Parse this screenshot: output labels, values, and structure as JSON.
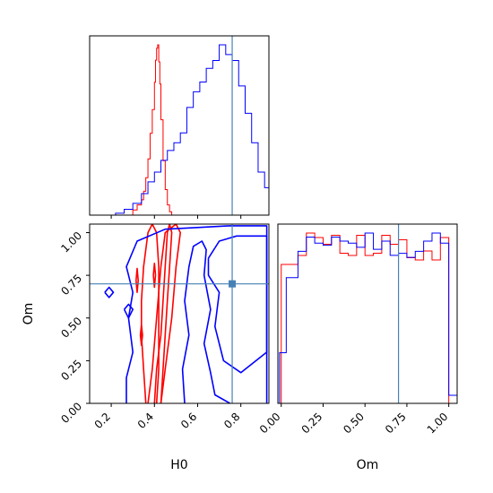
{
  "chart_data": [
    {
      "type": "histogram",
      "panel": "H0 marginal",
      "x_range": [
        0.1,
        0.93
      ],
      "truth_x": 0.76,
      "ticks_x": [
        "0.2",
        "0.4",
        "0.6",
        "0.8"
      ],
      "series": [
        {
          "color": "#ff0000",
          "edges": [
            0.3,
            0.32,
            0.34,
            0.35,
            0.36,
            0.37,
            0.38,
            0.39,
            0.4,
            0.405,
            0.41,
            0.415,
            0.42,
            0.425,
            0.43,
            0.44,
            0.45,
            0.46,
            0.47,
            0.48
          ],
          "heights": [
            0.03,
            0.06,
            0.09,
            0.14,
            0.22,
            0.33,
            0.48,
            0.62,
            0.78,
            0.91,
            0.98,
            1.0,
            0.9,
            0.77,
            0.56,
            0.32,
            0.15,
            0.06,
            0.02
          ]
        },
        {
          "color": "#0000ff",
          "edges": [
            0.22,
            0.26,
            0.3,
            0.34,
            0.37,
            0.4,
            0.43,
            0.46,
            0.49,
            0.52,
            0.55,
            0.58,
            0.61,
            0.64,
            0.67,
            0.7,
            0.73,
            0.76,
            0.79,
            0.82,
            0.85,
            0.88,
            0.91,
            0.93
          ],
          "heights": [
            0.01,
            0.03,
            0.06,
            0.11,
            0.17,
            0.22,
            0.28,
            0.33,
            0.37,
            0.42,
            0.55,
            0.63,
            0.68,
            0.75,
            0.79,
            0.87,
            0.82,
            0.79,
            0.66,
            0.52,
            0.37,
            0.22,
            0.14
          ]
        }
      ]
    },
    {
      "type": "contour",
      "panel": "H0 vs Om",
      "xlabel": "H0",
      "ylabel": "Om",
      "x_range": [
        0.1,
        0.93
      ],
      "y_range": [
        0.0,
        1.05
      ],
      "ticks_x": [
        "0.2",
        "0.4",
        "0.6",
        "0.8"
      ],
      "ticks_y": [
        "0.00",
        "0.25",
        "0.50",
        "0.75",
        "1.00"
      ],
      "truth": [
        0.76,
        0.7
      ],
      "series": [
        {
          "color": "#ff0000",
          "contours": [
            [
              [
                0.36,
                0.0
              ],
              [
                0.35,
                0.2
              ],
              [
                0.34,
                0.4
              ],
              [
                0.34,
                0.6
              ],
              [
                0.35,
                0.8
              ],
              [
                0.37,
                1.0
              ],
              [
                0.39,
                1.05
              ],
              [
                0.41,
                1.0
              ],
              [
                0.42,
                0.8
              ],
              [
                0.42,
                0.6
              ],
              [
                0.42,
                0.4
              ],
              [
                0.42,
                0.2
              ],
              [
                0.41,
                0.0
              ]
            ],
            [
              [
                0.4,
                0.0
              ],
              [
                0.41,
                0.2
              ],
              [
                0.43,
                0.4
              ],
              [
                0.44,
                0.6
              ],
              [
                0.45,
                0.8
              ],
              [
                0.46,
                1.0
              ],
              [
                0.47,
                1.05
              ],
              [
                0.48,
                1.0
              ],
              [
                0.47,
                0.8
              ],
              [
                0.46,
                0.6
              ],
              [
                0.45,
                0.4
              ],
              [
                0.44,
                0.2
              ],
              [
                0.43,
                0.0
              ]
            ],
            [
              [
                0.37,
                0.0
              ],
              [
                0.39,
                0.2
              ],
              [
                0.41,
                0.5
              ],
              [
                0.43,
                0.8
              ],
              [
                0.45,
                1.0
              ],
              [
                0.5,
                1.05
              ],
              [
                0.52,
                1.0
              ],
              [
                0.5,
                0.8
              ],
              [
                0.48,
                0.5
              ],
              [
                0.45,
                0.2
              ],
              [
                0.43,
                0.0
              ]
            ],
            [
              [
                0.395,
                0.75
              ],
              [
                0.4,
                0.82
              ],
              [
                0.405,
                0.75
              ],
              [
                0.4,
                0.68
              ],
              [
                0.395,
                0.75
              ]
            ],
            [
              [
                0.315,
                0.72
              ],
              [
                0.32,
                0.79
              ],
              [
                0.325,
                0.72
              ],
              [
                0.32,
                0.65
              ],
              [
                0.315,
                0.72
              ]
            ],
            [
              [
                0.335,
                0.4
              ],
              [
                0.34,
                0.46
              ],
              [
                0.345,
                0.4
              ],
              [
                0.34,
                0.34
              ],
              [
                0.335,
                0.4
              ]
            ]
          ]
        },
        {
          "color": "#0000ff",
          "contours": [
            [
              [
                0.27,
                0.0
              ],
              [
                0.27,
                0.15
              ],
              [
                0.3,
                0.3
              ],
              [
                0.28,
                0.5
              ],
              [
                0.3,
                0.65
              ],
              [
                0.27,
                0.8
              ],
              [
                0.32,
                0.95
              ],
              [
                0.45,
                1.02
              ],
              [
                0.6,
                1.03
              ],
              [
                0.75,
                1.04
              ],
              [
                0.92,
                1.04
              ],
              [
                0.92,
                0.0
              ]
            ],
            [
              [
                0.54,
                0.0
              ],
              [
                0.53,
                0.2
              ],
              [
                0.56,
                0.4
              ],
              [
                0.54,
                0.6
              ],
              [
                0.56,
                0.8
              ],
              [
                0.58,
                0.92
              ],
              [
                0.62,
                0.95
              ],
              [
                0.64,
                0.9
              ],
              [
                0.63,
                0.75
              ],
              [
                0.66,
                0.55
              ],
              [
                0.63,
                0.35
              ],
              [
                0.66,
                0.18
              ],
              [
                0.68,
                0.05
              ],
              [
                0.75,
                0.0
              ]
            ],
            [
              [
                0.65,
                0.85
              ],
              [
                0.7,
                0.95
              ],
              [
                0.78,
                0.98
              ],
              [
                0.92,
                0.98
              ],
              [
                0.92,
                0.3
              ],
              [
                0.8,
                0.18
              ],
              [
                0.72,
                0.25
              ],
              [
                0.68,
                0.45
              ],
              [
                0.7,
                0.65
              ],
              [
                0.65,
                0.75
              ],
              [
                0.65,
                0.85
              ]
            ],
            [
              [
                0.26,
                0.55
              ],
              [
                0.28,
                0.58
              ],
              [
                0.3,
                0.55
              ],
              [
                0.28,
                0.5
              ],
              [
                0.26,
                0.55
              ]
            ],
            [
              [
                0.17,
                0.65
              ],
              [
                0.19,
                0.68
              ],
              [
                0.21,
                0.65
              ],
              [
                0.19,
                0.62
              ],
              [
                0.17,
                0.65
              ]
            ]
          ]
        }
      ]
    },
    {
      "type": "histogram",
      "panel": "Om marginal",
      "xlabel": "Om",
      "x_range": [
        -0.02,
        1.05
      ],
      "truth_x": 0.7,
      "ticks_x": [
        "0.00",
        "0.25",
        "0.50",
        "0.75",
        "1.00"
      ],
      "series": [
        {
          "color": "#ff0000",
          "edges": [
            0.0,
            0.05,
            0.1,
            0.15,
            0.2,
            0.25,
            0.3,
            0.35,
            0.4,
            0.45,
            0.5,
            0.55,
            0.6,
            0.65,
            0.7,
            0.75,
            0.8,
            0.85,
            0.9,
            0.95,
            1.0
          ],
          "heights": [
            0.62,
            0.62,
            0.66,
            0.76,
            0.74,
            0.71,
            0.75,
            0.67,
            0.66,
            0.75,
            0.66,
            0.67,
            0.75,
            0.71,
            0.73,
            0.65,
            0.64,
            0.68,
            0.64,
            0.74
          ]
        },
        {
          "color": "#0000ff",
          "edges": [
            -0.01,
            0.03,
            0.1,
            0.15,
            0.2,
            0.25,
            0.3,
            0.35,
            0.4,
            0.45,
            0.5,
            0.55,
            0.6,
            0.65,
            0.7,
            0.75,
            0.8,
            0.85,
            0.9,
            0.95,
            1.0,
            1.05
          ],
          "heights": [
            0.25,
            0.62,
            0.75,
            0.82,
            0.79,
            0.78,
            0.82,
            0.8,
            0.79,
            0.77,
            0.84,
            0.76,
            0.8,
            0.73,
            0.74,
            0.72,
            0.75,
            0.8,
            0.84,
            0.79,
            0.04
          ]
        }
      ]
    }
  ]
}
